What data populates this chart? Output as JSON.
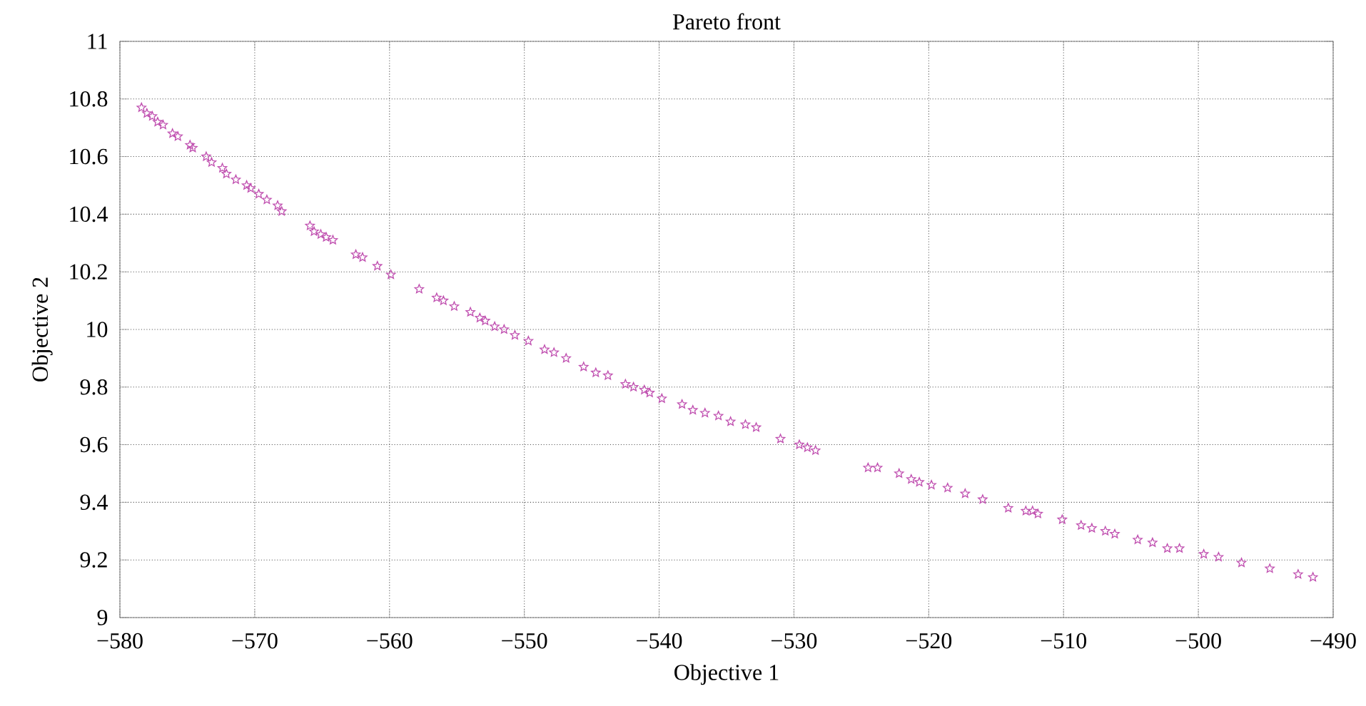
{
  "chart_data": {
    "type": "scatter",
    "title": "Pareto front",
    "xlabel": "Objective 1",
    "ylabel": "Objective 2",
    "xlim": [
      -580,
      -490
    ],
    "xticks": [
      {
        "value": -580,
        "label": "−580"
      },
      {
        "value": -570,
        "label": "−570"
      },
      {
        "value": -560,
        "label": "−560"
      },
      {
        "value": -550,
        "label": "−550"
      },
      {
        "value": -540,
        "label": "−540"
      },
      {
        "value": -530,
        "label": "−530"
      },
      {
        "value": -520,
        "label": "−520"
      },
      {
        "value": -510,
        "label": "−510"
      },
      {
        "value": -500,
        "label": "−500"
      },
      {
        "value": -490,
        "label": "−490"
      }
    ],
    "ylim": [
      9,
      11
    ],
    "yticks": [
      9,
      9.2,
      9.4,
      9.6,
      9.8,
      10,
      10.2,
      10.4,
      10.6,
      10.8,
      11
    ],
    "grid": true,
    "marker": "star",
    "series": [
      {
        "color": "#c050b0",
        "x": [
          -578.4,
          -578.0,
          -577.6,
          -577.2,
          -576.8,
          -576.1,
          -575.7,
          -574.8,
          -574.6,
          -573.6,
          -573.2,
          -572.4,
          -572.1,
          -571.4,
          -570.6,
          -570.3,
          -569.7,
          -569.1,
          -568.3,
          -568.0,
          -565.9,
          -565.6,
          -565.1,
          -564.7,
          -564.2,
          -562.5,
          -562.0,
          -560.9,
          -559.9,
          -557.8,
          -556.5,
          -556.0,
          -555.2,
          -554.0,
          -553.3,
          -552.9,
          -552.2,
          -551.5,
          -550.7,
          -549.7,
          -548.5,
          -547.8,
          -546.9,
          -545.6,
          -544.7,
          -543.8,
          -542.5,
          -541.9,
          -541.1,
          -540.7,
          -539.8,
          -538.3,
          -537.5,
          -536.6,
          -535.6,
          -534.7,
          -533.6,
          -532.8,
          -531.0,
          -529.6,
          -529.0,
          -528.4,
          -524.5,
          -523.8,
          -522.2,
          -521.3,
          -520.7,
          -519.8,
          -518.6,
          -517.3,
          -516.0,
          -514.1,
          -512.8,
          -512.3,
          -511.9,
          -510.1,
          -508.7,
          -507.9,
          -506.9,
          -506.2,
          -504.5,
          -503.4,
          -502.3,
          -501.4,
          -499.6,
          -498.5,
          -496.8,
          -494.7,
          -492.6,
          -491.5
        ],
        "values": [
          10.77,
          10.75,
          10.74,
          10.72,
          10.71,
          10.68,
          10.67,
          10.64,
          10.63,
          10.6,
          10.58,
          10.56,
          10.54,
          10.52,
          10.5,
          10.49,
          10.47,
          10.45,
          10.43,
          10.41,
          10.36,
          10.34,
          10.33,
          10.32,
          10.31,
          10.26,
          10.25,
          10.22,
          10.19,
          10.14,
          10.11,
          10.1,
          10.08,
          10.06,
          10.04,
          10.03,
          10.01,
          10.0,
          9.98,
          9.96,
          9.93,
          9.92,
          9.9,
          9.87,
          9.85,
          9.84,
          9.81,
          9.8,
          9.79,
          9.78,
          9.76,
          9.74,
          9.72,
          9.71,
          9.7,
          9.68,
          9.67,
          9.66,
          9.62,
          9.6,
          9.59,
          9.58,
          9.52,
          9.52,
          9.5,
          9.48,
          9.47,
          9.46,
          9.45,
          9.43,
          9.41,
          9.38,
          9.37,
          9.37,
          9.36,
          9.34,
          9.32,
          9.31,
          9.3,
          9.29,
          9.27,
          9.26,
          9.24,
          9.24,
          9.22,
          9.21,
          9.19,
          9.17,
          9.15,
          9.14
        ]
      }
    ]
  }
}
